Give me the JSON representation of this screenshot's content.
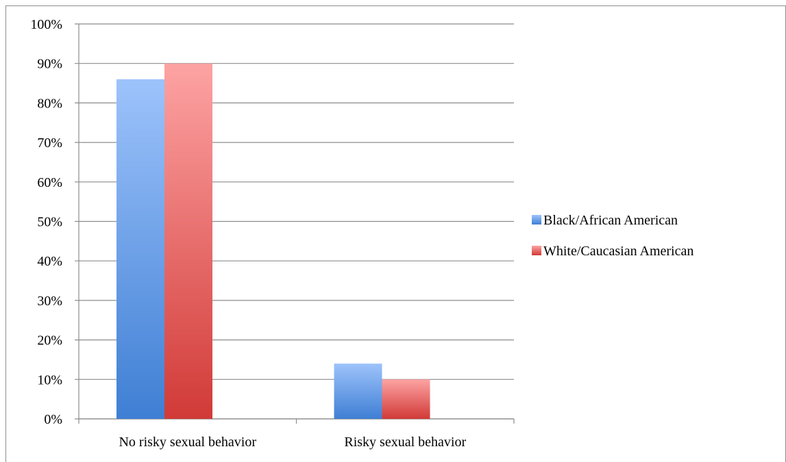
{
  "chart_data": {
    "type": "bar",
    "categories": [
      "No risky sexual behavior",
      "Risky sexual behavior"
    ],
    "series": [
      {
        "name": "Black/African American",
        "values": [
          86,
          14
        ],
        "color_top": "#9dc3fb",
        "color_bottom": "#3f7fd4"
      },
      {
        "name": "White/Caucasian American",
        "values": [
          90,
          10
        ],
        "color_top": "#fda3a3",
        "color_bottom": "#d13a37"
      }
    ],
    "y_tick_labels": [
      "0%",
      "10%",
      "20%",
      "30%",
      "40%",
      "50%",
      "60%",
      "70%",
      "80%",
      "90%",
      "100%"
    ],
    "ylim": [
      0,
      100
    ],
    "y_unit": "%",
    "grid": true,
    "legend_position": "right",
    "title": "",
    "xlabel": "",
    "ylabel": ""
  }
}
